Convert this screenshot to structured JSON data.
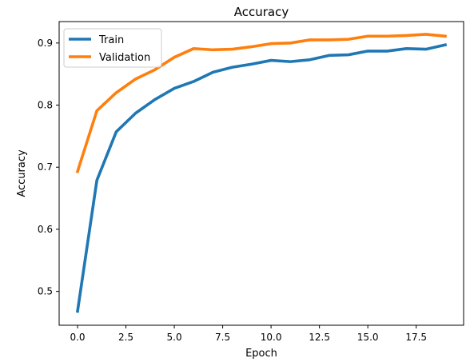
{
  "chart_data": {
    "type": "line",
    "title": "Accuracy",
    "xlabel": "Epoch",
    "ylabel": "Accuracy",
    "x": [
      0,
      1,
      2,
      3,
      4,
      5,
      6,
      7,
      8,
      9,
      10,
      11,
      12,
      13,
      14,
      15,
      16,
      17,
      18,
      19
    ],
    "xlim": [
      -0.95,
      19.95
    ],
    "ylim": [
      0.4455,
      0.9345
    ],
    "xticks": [
      0.0,
      2.5,
      5.0,
      7.5,
      10.0,
      12.5,
      15.0,
      17.5
    ],
    "xtick_labels": [
      "0.0",
      "2.5",
      "5.0",
      "7.5",
      "10.0",
      "12.5",
      "15.0",
      "17.5"
    ],
    "yticks": [
      0.5,
      0.6,
      0.7,
      0.8,
      0.9
    ],
    "ytick_labels": [
      "0.5",
      "0.6",
      "0.7",
      "0.8",
      "0.9"
    ],
    "grid": false,
    "legend": "top-left",
    "series": [
      {
        "name": "Train",
        "color": "#1f77b4",
        "values": [
          0.468,
          0.679,
          0.757,
          0.787,
          0.809,
          0.827,
          0.838,
          0.853,
          0.861,
          0.866,
          0.872,
          0.87,
          0.873,
          0.88,
          0.881,
          0.887,
          0.887,
          0.891,
          0.89,
          0.897
        ]
      },
      {
        "name": "Validation",
        "color": "#ff7f0e",
        "values": [
          0.693,
          0.791,
          0.82,
          0.842,
          0.857,
          0.877,
          0.891,
          0.889,
          0.89,
          0.894,
          0.899,
          0.9,
          0.905,
          0.905,
          0.906,
          0.911,
          0.911,
          0.912,
          0.914,
          0.911
        ]
      }
    ]
  }
}
